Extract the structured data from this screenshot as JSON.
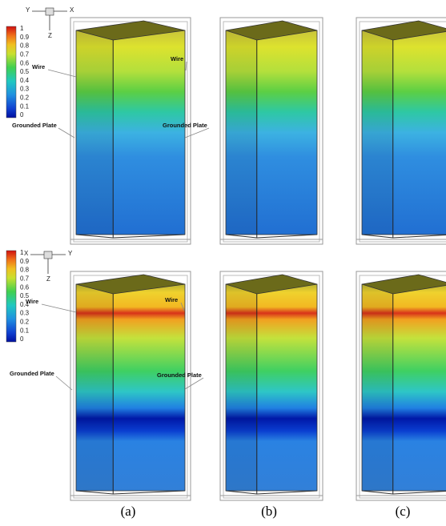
{
  "top_row": {
    "legend": {
      "labels": [
        "1",
        "0.9",
        "0.8",
        "0.7",
        "0.6",
        "0.5",
        "0.4",
        "0.3",
        "0.2",
        "0.1",
        "0"
      ]
    },
    "axes": {
      "left": "Y",
      "right": "X",
      "down": "Z"
    },
    "annotations": {
      "wire_left": "Wire",
      "wire_right": "Wire",
      "plate_left": "Grounded Plate",
      "plate_right": "Grounded Plate"
    }
  },
  "bottom_row": {
    "legend": {
      "labels": [
        "1",
        "0.9",
        "0.8",
        "0.7",
        "0.6",
        "0.5",
        "0.4",
        "0.3",
        "0.2",
        "0.1",
        "0"
      ]
    },
    "axes": {
      "left": "X",
      "right": "Y",
      "down": "Z"
    },
    "annotations": {
      "wire_left": "Wire",
      "wire_right": "Wire",
      "plate_left": "Grounded Plate",
      "plate_right": "Grounded Plate"
    }
  },
  "captions": [
    "(a)",
    "(b)",
    "(c)"
  ]
}
